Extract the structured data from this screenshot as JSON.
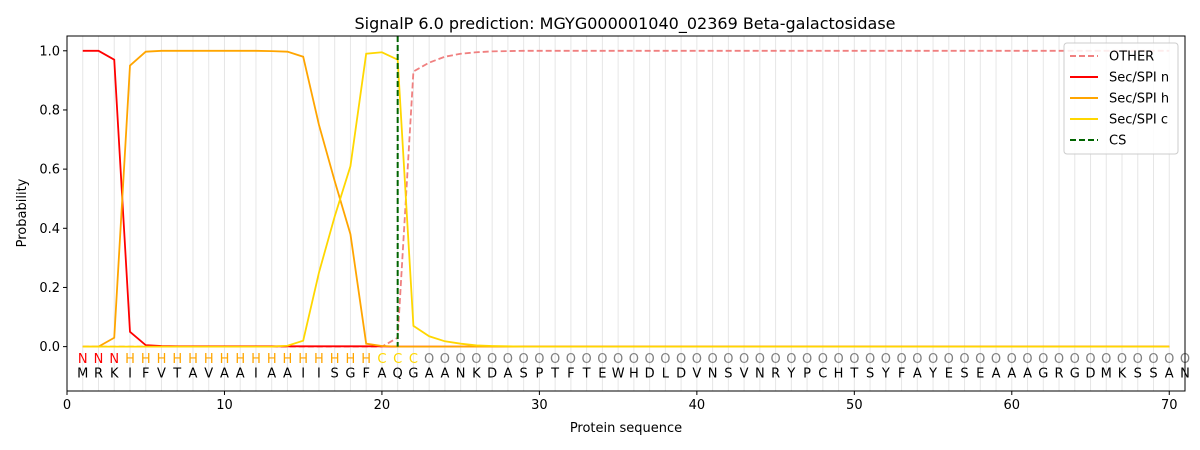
{
  "chart_data": {
    "type": "line",
    "title": "SignalP 6.0 prediction: MGYG000001040_02369 Beta-galactosidase",
    "xlabel": "Protein sequence",
    "ylabel": "Probability",
    "xlim": [
      0,
      71
    ],
    "ylim": [
      -0.15,
      1.05
    ],
    "xticks": [
      0,
      10,
      20,
      30,
      40,
      50,
      60,
      70
    ],
    "yticks": [
      0.0,
      0.2,
      0.4,
      0.6,
      0.8,
      1.0
    ],
    "ytick_labels": [
      "0.0",
      "0.2",
      "0.4",
      "0.6",
      "0.8",
      "1.0"
    ],
    "legend_position": "top-right",
    "sequence": "MRKIFVTAVAAIAAIISGFAQGAANKDASPTFTEWHDLDVNSVNRYPCHTSYFAYESEAAAGRGDMKSSAN",
    "labels": "NNNHHHHHHHHHHHHHHHHCCCOOOOOOOOOOOOOOOOOOOOOOOOOOOOOOOOOOOOOOOOOOOOOOOOO",
    "label_colors": {
      "N": "#ff0000",
      "H": "#ffa500",
      "C": "#ffd700",
      "O": "#808080"
    },
    "cleavage_site": 21,
    "series": [
      {
        "name": "OTHER",
        "color": "#f08080",
        "dash": true,
        "x": [
          1,
          2,
          3,
          4,
          5,
          6,
          7,
          8,
          9,
          10,
          11,
          12,
          13,
          14,
          15,
          16,
          17,
          18,
          19,
          20,
          21,
          22,
          23,
          24,
          25,
          26,
          27,
          28,
          29,
          30,
          31,
          32,
          33,
          34,
          35,
          36,
          37,
          38,
          39,
          40,
          41,
          42,
          43,
          44,
          45,
          46,
          47,
          48,
          49,
          50,
          51,
          52,
          53,
          54,
          55,
          56,
          57,
          58,
          59,
          60,
          61,
          62,
          63,
          64,
          65,
          66,
          67,
          68,
          69,
          70
        ],
        "y": [
          0,
          0,
          0,
          0,
          0,
          0,
          0,
          0,
          0,
          0,
          0,
          0,
          0,
          0,
          0,
          0,
          0,
          0,
          0,
          0.0,
          0.03,
          0.93,
          0.96,
          0.98,
          0.99,
          0.995,
          0.998,
          0.999,
          1,
          1,
          1,
          1,
          1,
          1,
          1,
          1,
          1,
          1,
          1,
          1,
          1,
          1,
          1,
          1,
          1,
          1,
          1,
          1,
          1,
          1,
          1,
          1,
          1,
          1,
          1,
          1,
          1,
          1,
          1,
          1,
          1,
          1,
          1,
          1,
          1,
          1,
          1,
          1,
          1,
          1
        ]
      },
      {
        "name": "Sec/SPI n",
        "color": "#ff0000",
        "dash": false,
        "x": [
          1,
          2,
          3,
          4,
          5,
          6,
          7,
          8,
          9,
          10,
          11,
          12,
          13,
          14,
          15,
          16,
          17,
          18,
          19,
          20,
          21,
          22,
          23,
          24,
          25,
          26,
          27,
          28,
          29,
          30,
          31,
          32,
          33,
          34,
          35,
          36,
          37,
          38,
          39,
          40,
          41,
          42,
          43,
          44,
          45,
          46,
          47,
          48,
          49,
          50,
          51,
          52,
          53,
          54,
          55,
          56,
          57,
          58,
          59,
          60,
          61,
          62,
          63,
          64,
          65,
          66,
          67,
          68,
          69,
          70
        ],
        "y": [
          1.0,
          1.0,
          0.97,
          0.05,
          0.005,
          0.002,
          0.001,
          0.001,
          0.001,
          0.001,
          0.001,
          0.001,
          0.001,
          0.001,
          0.001,
          0.001,
          0.001,
          0.001,
          0.001,
          0.001,
          0,
          0,
          0,
          0,
          0,
          0,
          0,
          0,
          0,
          0,
          0,
          0,
          0,
          0,
          0,
          0,
          0,
          0,
          0,
          0,
          0,
          0,
          0,
          0,
          0,
          0,
          0,
          0,
          0,
          0,
          0,
          0,
          0,
          0,
          0,
          0,
          0,
          0,
          0,
          0,
          0,
          0,
          0,
          0,
          0,
          0,
          0,
          0,
          0,
          0
        ]
      },
      {
        "name": "Sec/SPI h",
        "color": "#ffa500",
        "dash": false,
        "x": [
          1,
          2,
          3,
          4,
          5,
          6,
          7,
          8,
          9,
          10,
          11,
          12,
          13,
          14,
          15,
          16,
          17,
          18,
          19,
          20,
          21,
          22,
          23,
          24,
          25,
          26,
          27,
          28,
          29,
          30,
          31,
          32,
          33,
          34,
          35,
          36,
          37,
          38,
          39,
          40,
          41,
          42,
          43,
          44,
          45,
          46,
          47,
          48,
          49,
          50,
          51,
          52,
          53,
          54,
          55,
          56,
          57,
          58,
          59,
          60,
          61,
          62,
          63,
          64,
          65,
          66,
          67,
          68,
          69,
          70
        ],
        "y": [
          0.0,
          0.0,
          0.03,
          0.95,
          0.997,
          1.0,
          1.0,
          1.0,
          1.0,
          1.0,
          1.0,
          1.0,
          0.999,
          0.997,
          0.98,
          0.75,
          0.56,
          0.38,
          0.01,
          0.002,
          0.0,
          0,
          0,
          0,
          0,
          0,
          0,
          0,
          0,
          0,
          0,
          0,
          0,
          0,
          0,
          0,
          0,
          0,
          0,
          0,
          0,
          0,
          0,
          0,
          0,
          0,
          0,
          0,
          0,
          0,
          0,
          0,
          0,
          0,
          0,
          0,
          0,
          0,
          0,
          0,
          0,
          0,
          0,
          0,
          0,
          0,
          0,
          0,
          0,
          0
        ]
      },
      {
        "name": "Sec/SPI c",
        "color": "#ffd700",
        "dash": false,
        "x": [
          1,
          2,
          3,
          4,
          5,
          6,
          7,
          8,
          9,
          10,
          11,
          12,
          13,
          14,
          15,
          16,
          17,
          18,
          19,
          20,
          21,
          22,
          23,
          24,
          25,
          26,
          27,
          28,
          29,
          30,
          31,
          32,
          33,
          34,
          35,
          36,
          37,
          38,
          39,
          40,
          41,
          42,
          43,
          44,
          45,
          46,
          47,
          48,
          49,
          50,
          51,
          52,
          53,
          54,
          55,
          56,
          57,
          58,
          59,
          60,
          61,
          62,
          63,
          64,
          65,
          66,
          67,
          68,
          69,
          70
        ],
        "y": [
          0,
          0,
          0,
          0,
          0,
          0,
          0,
          0,
          0,
          0,
          0,
          0,
          0,
          0.003,
          0.02,
          0.25,
          0.44,
          0.61,
          0.99,
          0.995,
          0.97,
          0.07,
          0.035,
          0.018,
          0.01,
          0.004,
          0.002,
          0.001,
          0,
          0,
          0,
          0,
          0,
          0,
          0,
          0,
          0,
          0,
          0,
          0,
          0,
          0,
          0,
          0,
          0,
          0,
          0,
          0,
          0,
          0,
          0,
          0,
          0,
          0,
          0,
          0,
          0,
          0,
          0,
          0,
          0,
          0,
          0,
          0,
          0,
          0,
          0,
          0,
          0,
          0
        ]
      },
      {
        "name": "CS",
        "color": "#006400",
        "dash": true,
        "vertical_line_at": 21
      }
    ]
  }
}
